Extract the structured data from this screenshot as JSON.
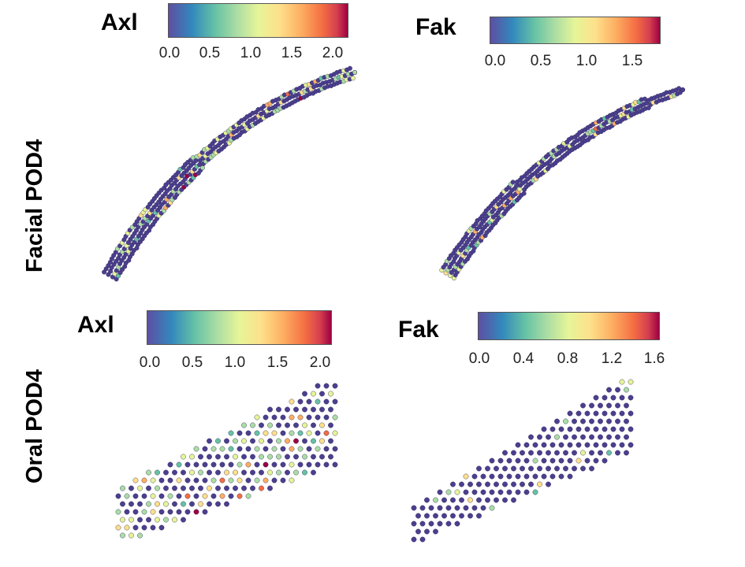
{
  "row_labels": {
    "top": "Facial POD4",
    "bottom": "Oral POD4"
  },
  "panels": {
    "tl": {
      "gene": "Axl",
      "ticks": [
        "0.0",
        "0.5",
        "1.0",
        "1.5",
        "2.0"
      ]
    },
    "tr": {
      "gene": "Fak",
      "ticks": [
        "0.0",
        "0.5",
        "1.0",
        "1.5"
      ]
    },
    "bl": {
      "gene": "Axl",
      "ticks": [
        "0.0",
        "0.5",
        "1.0",
        "1.5",
        "2.0"
      ]
    },
    "br": {
      "gene": "Fak",
      "ticks": [
        "0.0",
        "0.4",
        "0.8",
        "1.2",
        "1.6"
      ]
    }
  },
  "colors": {
    "low": "#4b3f8f",
    "spectral": [
      "#5e4fa2",
      "#3288bd",
      "#66c2a5",
      "#abdda4",
      "#e6f598",
      "#fee08b",
      "#fdae61",
      "#f46d43",
      "#d53e4f",
      "#9e0142"
    ]
  }
}
